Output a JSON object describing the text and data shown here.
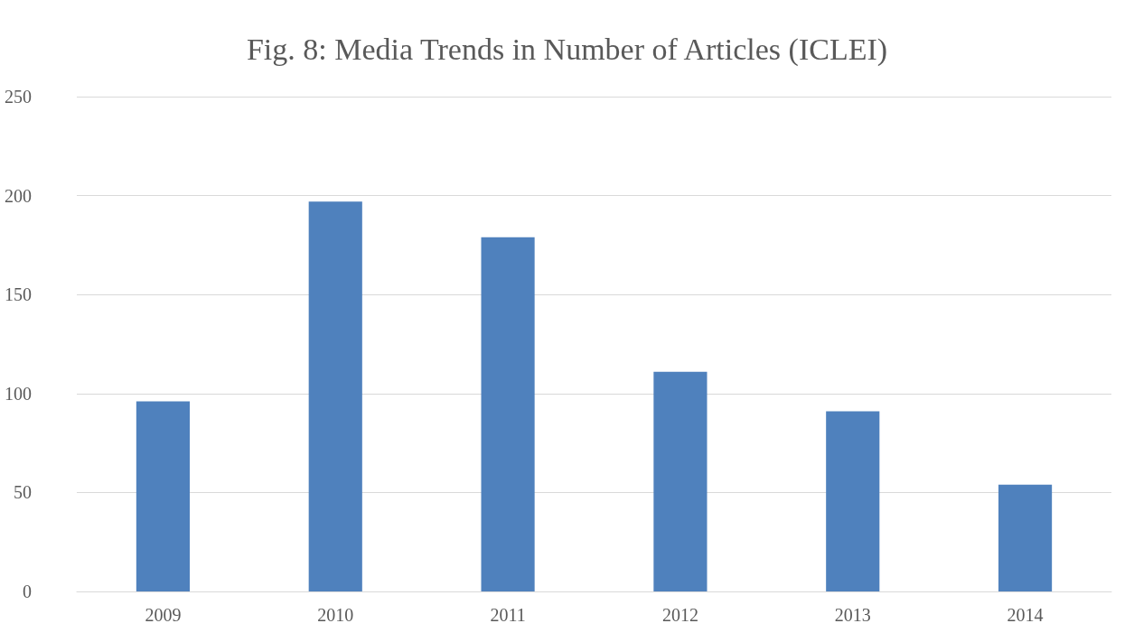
{
  "chart_data": {
    "type": "bar",
    "title": "Fig. 8: Media Trends in Number of Articles (ICLEI)",
    "categories": [
      "2009",
      "2010",
      "2011",
      "2012",
      "2013",
      "2014"
    ],
    "values": [
      96,
      197,
      179,
      111,
      91,
      54
    ],
    "color": "#4f81bd",
    "ylim": [
      0,
      250
    ],
    "yticks": [
      0,
      50,
      100,
      150,
      200,
      250
    ],
    "grid": "y"
  }
}
